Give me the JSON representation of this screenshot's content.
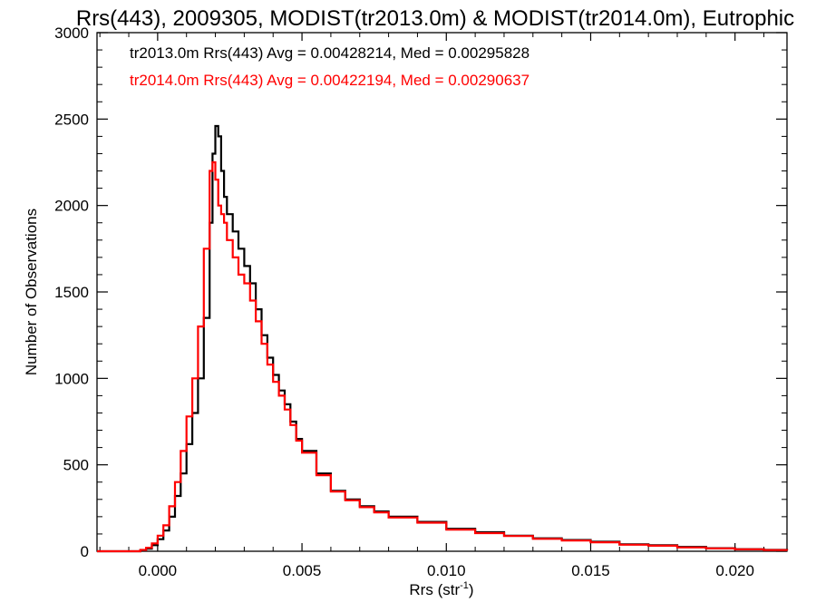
{
  "chart_data": {
    "type": "line",
    "title": "Rrs(443), 2009305, MODIST(tr2013.0m) & MODIST(tr2014.0m), Eutrophic",
    "xlabel_main": "Rrs (str",
    "xlabel_sup": "-1",
    "xlabel_close": ")",
    "ylabel": "Number of Observations",
    "xlim": [
      -0.0021,
      0.0218
    ],
    "ylim": [
      0,
      3000
    ],
    "xticks": [
      0.0,
      0.005,
      0.01,
      0.015,
      0.02
    ],
    "xtick_labels": [
      "0.000",
      "0.005",
      "0.010",
      "0.015",
      "0.020"
    ],
    "yticks": [
      0,
      500,
      1000,
      1500,
      2000,
      2500,
      3000
    ],
    "ytick_labels": [
      "0",
      "500",
      "1000",
      "1500",
      "2000",
      "2500",
      "3000"
    ],
    "grid": false,
    "legend_position": "top-left",
    "series": [
      {
        "name": "tr2013.0m",
        "color": "#000000",
        "stats_label": "tr2013.0m Rrs(443) Avg = 0.00428214, Med = 0.00295828",
        "points": [
          [
            -0.0021,
            0
          ],
          [
            -0.0008,
            0
          ],
          [
            -0.0006,
            5
          ],
          [
            -0.0004,
            15
          ],
          [
            -0.0002,
            35
          ],
          [
            0.0,
            70
          ],
          [
            0.0002,
            120
          ],
          [
            0.0004,
            200
          ],
          [
            0.0006,
            320
          ],
          [
            0.0008,
            450
          ],
          [
            0.001,
            620
          ],
          [
            0.0012,
            800
          ],
          [
            0.0014,
            1000
          ],
          [
            0.0016,
            1350
          ],
          [
            0.0018,
            1900
          ],
          [
            0.0019,
            2300
          ],
          [
            0.002,
            2460
          ],
          [
            0.0021,
            2400
          ],
          [
            0.0022,
            2200
          ],
          [
            0.0023,
            2050
          ],
          [
            0.0024,
            1950
          ],
          [
            0.0026,
            1850
          ],
          [
            0.0028,
            1750
          ],
          [
            0.003,
            1650
          ],
          [
            0.0032,
            1550
          ],
          [
            0.0034,
            1400
          ],
          [
            0.0036,
            1250
          ],
          [
            0.0038,
            1120
          ],
          [
            0.004,
            1020
          ],
          [
            0.0042,
            930
          ],
          [
            0.0044,
            850
          ],
          [
            0.0046,
            750
          ],
          [
            0.0048,
            650
          ],
          [
            0.005,
            580
          ],
          [
            0.0055,
            450
          ],
          [
            0.006,
            350
          ],
          [
            0.0065,
            300
          ],
          [
            0.007,
            260
          ],
          [
            0.0075,
            230
          ],
          [
            0.008,
            200
          ],
          [
            0.009,
            170
          ],
          [
            0.01,
            130
          ],
          [
            0.011,
            110
          ],
          [
            0.012,
            90
          ],
          [
            0.013,
            75
          ],
          [
            0.014,
            65
          ],
          [
            0.015,
            55
          ],
          [
            0.016,
            40
          ],
          [
            0.017,
            35
          ],
          [
            0.018,
            25
          ],
          [
            0.019,
            18
          ],
          [
            0.02,
            12
          ],
          [
            0.021,
            8
          ],
          [
            0.0218,
            5
          ]
        ]
      },
      {
        "name": "tr2014.0m",
        "color": "#ff0000",
        "stats_label": "tr2014.0m Rrs(443) Avg = 0.00422194, Med = 0.00290637",
        "points": [
          [
            -0.0021,
            0
          ],
          [
            -0.0008,
            0
          ],
          [
            -0.0006,
            8
          ],
          [
            -0.0004,
            20
          ],
          [
            -0.0002,
            45
          ],
          [
            0.0,
            90
          ],
          [
            0.0002,
            150
          ],
          [
            0.0004,
            260
          ],
          [
            0.0006,
            400
          ],
          [
            0.0008,
            580
          ],
          [
            0.001,
            780
          ],
          [
            0.0012,
            1000
          ],
          [
            0.0014,
            1300
          ],
          [
            0.0016,
            1750
          ],
          [
            0.0018,
            2200
          ],
          [
            0.0019,
            2250
          ],
          [
            0.002,
            2150
          ],
          [
            0.0021,
            2000
          ],
          [
            0.0022,
            1950
          ],
          [
            0.0023,
            1900
          ],
          [
            0.0024,
            1800
          ],
          [
            0.0026,
            1700
          ],
          [
            0.0028,
            1600
          ],
          [
            0.003,
            1550
          ],
          [
            0.0032,
            1450
          ],
          [
            0.0034,
            1330
          ],
          [
            0.0036,
            1200
          ],
          [
            0.0038,
            1080
          ],
          [
            0.004,
            980
          ],
          [
            0.0042,
            900
          ],
          [
            0.0044,
            820
          ],
          [
            0.0046,
            730
          ],
          [
            0.0048,
            640
          ],
          [
            0.005,
            570
          ],
          [
            0.0055,
            440
          ],
          [
            0.006,
            345
          ],
          [
            0.0065,
            295
          ],
          [
            0.007,
            255
          ],
          [
            0.0075,
            225
          ],
          [
            0.008,
            195
          ],
          [
            0.009,
            165
          ],
          [
            0.01,
            125
          ],
          [
            0.011,
            105
          ],
          [
            0.012,
            88
          ],
          [
            0.013,
            72
          ],
          [
            0.014,
            62
          ],
          [
            0.015,
            52
          ],
          [
            0.016,
            38
          ],
          [
            0.017,
            32
          ],
          [
            0.018,
            22
          ],
          [
            0.019,
            16
          ],
          [
            0.02,
            11
          ],
          [
            0.021,
            7
          ],
          [
            0.0218,
            4
          ]
        ]
      }
    ]
  }
}
